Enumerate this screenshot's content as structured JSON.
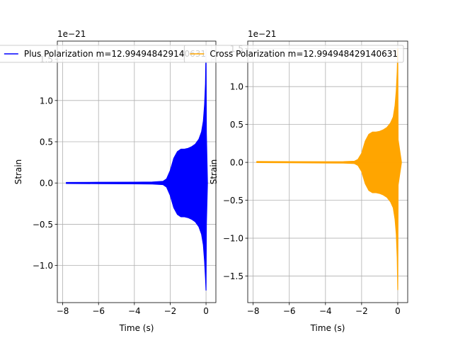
{
  "chart_data": [
    {
      "type": "line",
      "title": "",
      "xlabel": "Time (s)",
      "ylabel": "Strain",
      "scale_label": "1e−21",
      "xlim": [
        -8.3,
        0.55
      ],
      "ylim": [
        -1.45,
        1.72
      ],
      "xticks": [
        -8,
        -6,
        -4,
        -2,
        0
      ],
      "xtick_labels": [
        "−8",
        "−6",
        "−4",
        "−2",
        "0"
      ],
      "yticks": [
        -1.0,
        -0.5,
        0.0,
        0.5,
        1.0,
        1.5
      ],
      "ytick_labels": [
        "−1.0",
        "−0.5",
        "0.0",
        "0.5",
        "1.0",
        "1.5"
      ],
      "grid": true,
      "legend_position": "top-right",
      "series": [
        {
          "name": "Plus Polarization m=12.994948429140631",
          "color": "#0000ff",
          "envelope": {
            "t": [
              -7.8,
              -6.0,
              -4.0,
              -3.0,
              -2.4,
              -2.2,
              -2.0,
              -1.8,
              -1.6,
              -1.4,
              -1.2,
              -1.0,
              -0.8,
              -0.6,
              -0.4,
              -0.25,
              -0.15,
              -0.08,
              -0.03,
              0.0,
              0.02,
              0.08
            ],
            "upper": [
              0.006,
              0.008,
              0.01,
              0.012,
              0.02,
              0.05,
              0.15,
              0.3,
              0.38,
              0.41,
              0.41,
              0.42,
              0.44,
              0.47,
              0.53,
              0.62,
              0.75,
              0.95,
              1.2,
              1.62,
              0.6,
              0.0
            ],
            "lower": [
              -0.006,
              -0.008,
              -0.01,
              -0.012,
              -0.02,
              -0.05,
              -0.15,
              -0.3,
              -0.38,
              -0.41,
              -0.41,
              -0.42,
              -0.44,
              -0.47,
              -0.53,
              -0.62,
              -0.75,
              -0.95,
              -1.15,
              -1.3,
              -0.5,
              0.0
            ]
          }
        }
      ]
    },
    {
      "type": "line",
      "title": "",
      "xlabel": "Time (s)",
      "ylabel": "Strain",
      "scale_label": "1e−21",
      "xlim": [
        -8.3,
        0.55
      ],
      "ylim": [
        -1.85,
        1.6
      ],
      "xticks": [
        -8,
        -6,
        -4,
        -2,
        0
      ],
      "xtick_labels": [
        "−8",
        "−6",
        "−4",
        "−2",
        "0"
      ],
      "yticks": [
        -1.5,
        -1.0,
        -0.5,
        0.0,
        0.5,
        1.0,
        1.5
      ],
      "ytick_labels": [
        "−1.5",
        "−1.0",
        "−0.5",
        "0.0",
        "0.5",
        "1.0",
        "1.5"
      ],
      "grid": true,
      "legend_position": "top-right",
      "series": [
        {
          "name": "Cross Polarization m=12.994948429140631",
          "color": "#ffa500",
          "envelope": {
            "t": [
              -7.8,
              -6.0,
              -4.0,
              -3.0,
              -2.4,
              -2.2,
              -2.0,
              -1.8,
              -1.6,
              -1.4,
              -1.2,
              -1.0,
              -0.8,
              -0.6,
              -0.4,
              -0.25,
              -0.15,
              -0.08,
              -0.03,
              0.0,
              0.02,
              0.2
            ],
            "upper": [
              0.012,
              0.01,
              0.008,
              0.01,
              0.015,
              0.04,
              0.12,
              0.28,
              0.37,
              0.4,
              0.4,
              0.41,
              0.43,
              0.46,
              0.52,
              0.6,
              0.75,
              0.95,
              1.2,
              1.5,
              0.3,
              0.01
            ],
            "lower": [
              -0.003,
              -0.005,
              -0.008,
              -0.01,
              -0.015,
              -0.04,
              -0.12,
              -0.28,
              -0.37,
              -0.4,
              -0.4,
              -0.41,
              -0.43,
              -0.46,
              -0.52,
              -0.6,
              -0.75,
              -0.95,
              -1.25,
              -1.68,
              -0.3,
              -0.01
            ]
          }
        }
      ]
    }
  ]
}
